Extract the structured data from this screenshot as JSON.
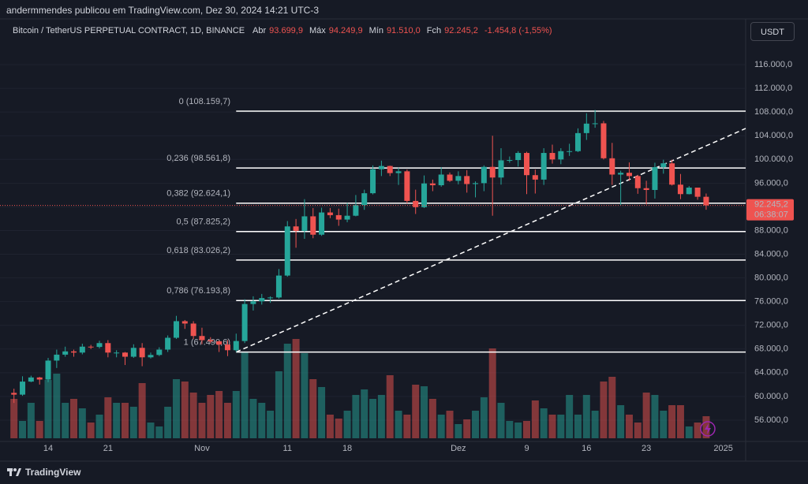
{
  "header": {
    "publisher": "andermmendes publicou em TradingView.com, Dez 30, 2024 14:21 UTC-3",
    "symbol": "Bitcoin / TetherUS PERPETUAL CONTRACT, 1D, BINANCE",
    "ohlc": [
      {
        "name": "Abr",
        "value": "93.699,9"
      },
      {
        "name": "Máx",
        "value": "94.249,9"
      },
      {
        "name": "Mín",
        "value": "91.510,0"
      },
      {
        "name": "Fch",
        "value": "92.245,2"
      }
    ],
    "change": "-1.454,8 (-1,55%)",
    "currency": "USDT"
  },
  "footer": "TradingView",
  "chart_data": {
    "type": "candlestick",
    "categories": [
      null,
      null,
      null,
      null,
      "14",
      null,
      null,
      null,
      null,
      null,
      null,
      "21",
      null,
      null,
      null,
      null,
      null,
      null,
      null,
      null,
      null,
      null,
      "Nov",
      null,
      null,
      null,
      null,
      null,
      null,
      null,
      null,
      null,
      "11",
      null,
      null,
      null,
      null,
      null,
      null,
      "18",
      null,
      null,
      null,
      null,
      null,
      null,
      null,
      null,
      null,
      null,
      null,
      null,
      "Dez",
      null,
      null,
      null,
      null,
      null,
      null,
      null,
      "9",
      null,
      null,
      null,
      null,
      null,
      null,
      "16",
      null,
      null,
      null,
      null,
      null,
      null,
      "23",
      null,
      null,
      null,
      null,
      null,
      null,
      null,
      null,
      "2025"
    ],
    "open": [
      60600,
      60300,
      62500,
      63200,
      62850,
      66050,
      67050,
      67600,
      67400,
      68400,
      68350,
      69000,
      67400,
      67400,
      66700,
      68200,
      66600,
      67000,
      67900,
      69900,
      72700,
      72300,
      70200,
      69500,
      69300,
      68750,
      67800,
      69350,
      75600,
      76050,
      76600,
      76700,
      80400,
      88700,
      87950,
      90400,
      87300,
      91050,
      90600,
      89850,
      90500,
      92300,
      94300,
      98350,
      98900,
      97700,
      98000,
      93000,
      91950,
      95950,
      95650,
      97450,
      96400,
      97200,
      95850,
      96000,
      98750,
      96950,
      99850,
      99900,
      101100,
      97350,
      96600,
      101100,
      100000,
      101400,
      101400,
      104450,
      106050,
      106100,
      100200,
      97450,
      97750,
      97200,
      95150,
      94850,
      98700,
      99350,
      95750,
      94150,
      95250,
      93699.9,
      null,
      null
    ],
    "high": [
      61300,
      63400,
      63500,
      63300,
      66500,
      67900,
      68400,
      67900,
      68900,
      68700,
      69400,
      69500,
      67800,
      67500,
      68800,
      69000,
      67400,
      68300,
      70300,
      73600,
      72900,
      72700,
      71600,
      70000,
      69400,
      69500,
      70600,
      76400,
      76900,
      77300,
      76900,
      81500,
      89600,
      89950,
      93300,
      91800,
      91850,
      91800,
      91700,
      92650,
      94000,
      94900,
      99000,
      99800,
      98950,
      98600,
      98300,
      94900,
      97300,
      96600,
      98700,
      97800,
      98000,
      98200,
      96300,
      99000,
      104000,
      101900,
      100500,
      101400,
      101300,
      98300,
      101900,
      102500,
      101900,
      102650,
      105250,
      107800,
      108350,
      106500,
      102800,
      98100,
      99500,
      97400,
      96400,
      99450,
      99950,
      99950,
      97550,
      95500,
      95250,
      94249.9,
      null,
      null
    ],
    "low": [
      58900,
      60100,
      62400,
      62000,
      62400,
      64800,
      66700,
      66700,
      67100,
      68000,
      68100,
      66600,
      66600,
      65300,
      66500,
      65100,
      66400,
      66800,
      67500,
      69700,
      71400,
      69700,
      68800,
      69000,
      67500,
      66800,
      67500,
      69000,
      74500,
      75500,
      75800,
      76500,
      80200,
      85100,
      86600,
      86700,
      87100,
      90100,
      88800,
      89400,
      90400,
      91500,
      94100,
      97200,
      97200,
      95700,
      92600,
      90800,
      91800,
      94650,
      95400,
      96200,
      95800,
      94400,
      93600,
      94650,
      90500,
      95750,
      99450,
      98800,
      94150,
      94250,
      95700,
      99300,
      99200,
      100600,
      101250,
      103300,
      105350,
      100000,
      95700,
      92200,
      96400,
      94200,
      92400,
      93400,
      97600,
      95600,
      93300,
      94100,
      93200,
      91510.0,
      null,
      null
    ],
    "close": [
      60300,
      62500,
      63200,
      62850,
      66050,
      67050,
      67600,
      67400,
      68400,
      68350,
      69000,
      67400,
      67400,
      66700,
      68200,
      66600,
      67000,
      67900,
      69900,
      72700,
      72300,
      70200,
      69500,
      69300,
      68750,
      67800,
      69350,
      75600,
      76050,
      76600,
      76700,
      80400,
      88700,
      87950,
      90400,
      87300,
      91050,
      90600,
      89850,
      90500,
      92300,
      94300,
      98350,
      98900,
      97700,
      98000,
      93000,
      91950,
      95950,
      95650,
      97450,
      96400,
      97200,
      95850,
      96000,
      98750,
      96950,
      99850,
      99900,
      101100,
      97350,
      96600,
      101100,
      100000,
      101400,
      101400,
      104450,
      106050,
      106100,
      100200,
      97450,
      97750,
      97200,
      95150,
      94850,
      98700,
      99350,
      95750,
      94150,
      95250,
      93700,
      92245.2,
      null,
      null
    ],
    "volume": [
      50,
      22,
      45,
      22,
      74,
      82,
      45,
      50,
      38,
      20,
      30,
      52,
      45,
      45,
      40,
      70,
      20,
      15,
      40,
      75,
      72,
      58,
      45,
      55,
      60,
      45,
      60,
      110,
      50,
      45,
      35,
      85,
      120,
      126,
      108,
      75,
      65,
      30,
      25,
      35,
      55,
      62,
      50,
      55,
      80,
      35,
      30,
      68,
      66,
      50,
      30,
      35,
      18,
      24,
      35,
      52,
      114,
      45,
      22,
      20,
      22,
      48,
      38,
      30,
      30,
      55,
      30,
      55,
      35,
      72,
      78,
      42,
      30,
      20,
      58,
      55,
      35,
      42,
      42,
      15,
      20,
      28,
      null,
      null
    ],
    "up_color": "#26a69a",
    "down_color": "#ef5350",
    "ylim": [
      52400,
      120000
    ],
    "yticks": [
      {
        "value": 56000,
        "label": "56.000,0"
      },
      {
        "value": 60000,
        "label": "60.000,0"
      },
      {
        "value": 64000,
        "label": "64.000,0"
      },
      {
        "value": 68000,
        "label": "68.000,0"
      },
      {
        "value": 72000,
        "label": "72.000,0"
      },
      {
        "value": 76000,
        "label": "76.000,0"
      },
      {
        "value": 80000,
        "label": "80.000,0"
      },
      {
        "value": 84000,
        "label": "84.000,0"
      },
      {
        "value": 88000,
        "label": "88.000,0"
      },
      {
        "value": 92000,
        "label": "92.000,0"
      },
      {
        "value": 96000,
        "label": "96.000,0"
      },
      {
        "value": 100000,
        "label": "100.000,0"
      },
      {
        "value": 104000,
        "label": "104.000,0"
      },
      {
        "value": 108000,
        "label": "108.000,0"
      },
      {
        "value": 112000,
        "label": "112.000,0"
      },
      {
        "value": 116000,
        "label": "116.000,0"
      }
    ],
    "grid": true,
    "fib_color": "#ffffff",
    "fib_levels": [
      {
        "value": 108159.7,
        "label": "0 (108.159,7)"
      },
      {
        "value": 98561.8,
        "label": "0,236 (98.561,8)"
      },
      {
        "value": 92624.1,
        "label": "0,382 (92.624,1)"
      },
      {
        "value": 87825.2,
        "label": "0,5 (87.825,2)"
      },
      {
        "value": 83026.2,
        "label": "0,618 (83.026,2)"
      },
      {
        "value": 76193.8,
        "label": "0,786 (76.193,8)"
      },
      {
        "value": 67490.6,
        "label": "1 (67.490,6)"
      }
    ],
    "trendline": {
      "from": 67490.6,
      "to": 105230
    },
    "last_price": {
      "value": 92245.2,
      "label": "92.245,2",
      "countdown": "06:38:07"
    }
  }
}
